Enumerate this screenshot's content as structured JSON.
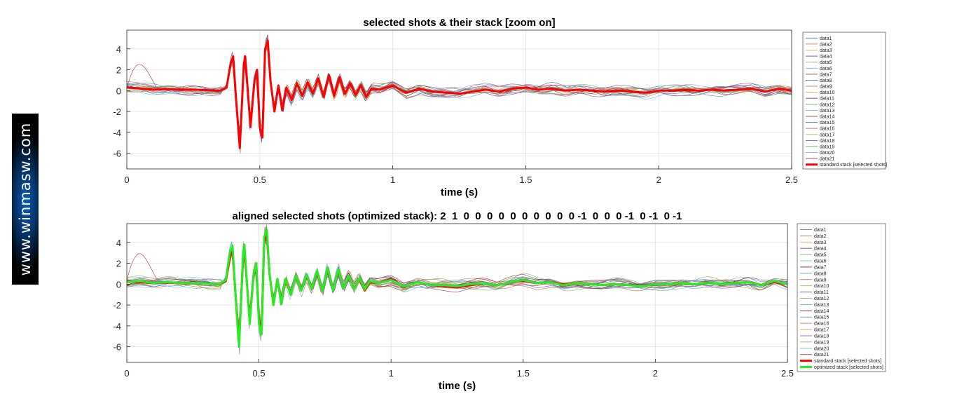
{
  "watermark": {
    "text": "www.winmasw.com"
  },
  "series_names": [
    "data1",
    "data2",
    "data3",
    "data4",
    "data5",
    "data6",
    "data7",
    "data8",
    "data9",
    "data10",
    "data11",
    "data12",
    "data13",
    "data14",
    "data15",
    "data16",
    "data17",
    "data18",
    "data19",
    "data20",
    "data21"
  ],
  "trace_colors": [
    "#4f7fb5",
    "#b85c3a",
    "#c9a23a",
    "#7e3c8a",
    "#6aa84f",
    "#5dade2",
    "#8b1f2a",
    "#4f7fb5",
    "#b85c3a",
    "#c9a23a",
    "#7e3c8a",
    "#6aa84f",
    "#5dade2",
    "#8b1f2a",
    "#4f7fb5",
    "#b85c3a",
    "#c9a23a",
    "#7e3c8a",
    "#6aa84f",
    "#5dade2",
    "#8b1f2a"
  ],
  "chart_data": [
    {
      "type": "line",
      "title": "selected shots & their stack [zoom on]",
      "xlabel": "time (s)",
      "ylabel": "",
      "xlim": [
        0,
        2.5
      ],
      "ylim": [
        -7.5,
        5.8
      ],
      "xticks": [
        0,
        0.5,
        1,
        1.5,
        2,
        2.5
      ],
      "xtick_labels": [
        "0",
        "0.5",
        "1",
        "1.5",
        "2",
        "2.5"
      ],
      "yticks": [
        4,
        2,
        0,
        -2,
        -4,
        -6
      ],
      "ytick_labels": [
        "4",
        "2",
        "0",
        "-2",
        "-4",
        "-6"
      ],
      "grid": true,
      "legend_position": "right",
      "trace_series": [
        "data1",
        "data2",
        "data3",
        "data4",
        "data5",
        "data6",
        "data7",
        "data8",
        "data9",
        "data10",
        "data11",
        "data12",
        "data13",
        "data14",
        "data15",
        "data16",
        "data17",
        "data18",
        "data19",
        "data20",
        "data21"
      ],
      "stack_series": [
        {
          "name": "standard stack [selected shots]",
          "color": "#ff0000",
          "x": [
            0,
            0.05,
            0.1,
            0.15,
            0.2,
            0.25,
            0.3,
            0.35,
            0.375,
            0.39,
            0.4,
            0.41,
            0.425,
            0.44,
            0.445,
            0.455,
            0.465,
            0.48,
            0.49,
            0.5,
            0.51,
            0.52,
            0.53,
            0.54,
            0.555,
            0.57,
            0.585,
            0.6,
            0.62,
            0.64,
            0.66,
            0.68,
            0.7,
            0.72,
            0.74,
            0.76,
            0.78,
            0.8,
            0.82,
            0.84,
            0.86,
            0.88,
            0.9,
            0.92,
            0.95,
            1,
            1.05,
            1.1,
            1.15,
            1.2,
            1.25,
            1.3,
            1.35,
            1.4,
            1.45,
            1.5,
            1.55,
            1.6,
            1.65,
            1.7,
            1.75,
            1.8,
            1.85,
            1.9,
            1.95,
            2,
            2.05,
            2.1,
            2.15,
            2.2,
            2.25,
            2.3,
            2.35,
            2.4,
            2.45,
            2.5
          ],
          "y": [
            0.3,
            0.2,
            0.1,
            0.15,
            0.1,
            0.1,
            0.05,
            0,
            0.3,
            2.5,
            3.3,
            -0.5,
            -5.5,
            2.5,
            3.3,
            0,
            -3.5,
            1,
            2,
            -3.5,
            -4.5,
            4,
            4.8,
            1,
            -2,
            0.5,
            -1.9,
            0.3,
            -0.9,
            0.7,
            -0.5,
            0.8,
            -0.3,
            1.2,
            -0.6,
            1.5,
            -0.5,
            1.3,
            -0.3,
            0.7,
            -0.4,
            0.5,
            -0.6,
            0.2,
            0.1,
            0.5,
            -0.2,
            0.2,
            -0.1,
            -0.2,
            -0.3,
            -0.1,
            0.1,
            -0.1,
            0.2,
            0.3,
            0.1,
            0.2,
            0,
            0.1,
            0,
            -0.1,
            0,
            -0.1,
            -0.2,
            0,
            0,
            0.1,
            0,
            0.1,
            0,
            0.1,
            0.2,
            -0.1,
            0.2,
            0
          ]
        }
      ]
    },
    {
      "type": "line",
      "title": "aligned selected shots (optimized stack): 2  1  0  0  0  0  0  0  0  0  0  0 -1  0  0  0 -1  0 -1  0 -1",
      "xlabel": "time (s)",
      "ylabel": "",
      "xlim": [
        0,
        2.5
      ],
      "ylim": [
        -7.5,
        5.8
      ],
      "xticks": [
        0,
        0.5,
        1,
        1.5,
        2,
        2.5
      ],
      "xtick_labels": [
        "0",
        "0.5",
        "1",
        "1.5",
        "2",
        "2.5"
      ],
      "yticks": [
        4,
        2,
        0,
        -2,
        -4,
        -6
      ],
      "ytick_labels": [
        "4",
        "2",
        "0",
        "-2",
        "-4",
        "-6"
      ],
      "grid": true,
      "legend_position": "right",
      "trace_series": [
        "data1",
        "data2",
        "data3",
        "data4",
        "data5",
        "data6",
        "data7",
        "data8",
        "data9",
        "data10",
        "data11",
        "data12",
        "data13",
        "data14",
        "data15",
        "data16",
        "data17",
        "data18",
        "data19",
        "data20",
        "data21"
      ],
      "stack_series": [
        {
          "name": "standard stack [selected shots]",
          "color": "#ff0000",
          "x": [
            0,
            0.05,
            0.1,
            0.15,
            0.2,
            0.25,
            0.3,
            0.35,
            0.375,
            0.39,
            0.4,
            0.41,
            0.425,
            0.44,
            0.445,
            0.455,
            0.465,
            0.48,
            0.49,
            0.5,
            0.51,
            0.52,
            0.53,
            0.54,
            0.555,
            0.57,
            0.585,
            0.6,
            0.62,
            0.64,
            0.66,
            0.68,
            0.7,
            0.72,
            0.74,
            0.76,
            0.78,
            0.8,
            0.82,
            0.84,
            0.86,
            0.88,
            0.9,
            0.92,
            0.95,
            1,
            1.05,
            1.1,
            1.15,
            1.2,
            1.25,
            1.3,
            1.35,
            1.4,
            1.45,
            1.5,
            1.55,
            1.6,
            1.65,
            1.7,
            1.75,
            1.8,
            1.85,
            1.9,
            1.95,
            2,
            2.05,
            2.1,
            2.15,
            2.2,
            2.25,
            2.3,
            2.35,
            2.4,
            2.45,
            2.5
          ],
          "y": [
            0.3,
            0.2,
            0.1,
            0.15,
            0.1,
            0.1,
            0.05,
            0,
            0.3,
            2.5,
            3.3,
            -0.5,
            -5.5,
            2.5,
            3.3,
            0,
            -3.5,
            1,
            2,
            -3.5,
            -4.5,
            4,
            4.8,
            1,
            -2,
            0.5,
            -1.9,
            0.3,
            -0.9,
            0.7,
            -0.5,
            0.8,
            -0.3,
            1.2,
            -0.6,
            1.5,
            -0.5,
            1.3,
            -0.3,
            0.7,
            -0.4,
            0.5,
            -0.6,
            0.2,
            0.1,
            0.5,
            -0.2,
            0.2,
            -0.1,
            -0.2,
            -0.3,
            -0.1,
            0.1,
            -0.1,
            0.2,
            0.3,
            0.1,
            0.2,
            0,
            0.1,
            0,
            -0.1,
            0,
            -0.1,
            -0.2,
            0,
            0,
            0.1,
            0,
            0.1,
            0,
            0.1,
            0.2,
            -0.1,
            0.2,
            0
          ]
        },
        {
          "name": "optimized stack [selected shots]",
          "color": "#22ee22",
          "x": [
            0,
            0.05,
            0.1,
            0.15,
            0.2,
            0.25,
            0.3,
            0.35,
            0.375,
            0.39,
            0.4,
            0.41,
            0.425,
            0.44,
            0.445,
            0.455,
            0.465,
            0.48,
            0.49,
            0.5,
            0.51,
            0.52,
            0.53,
            0.54,
            0.555,
            0.57,
            0.585,
            0.6,
            0.62,
            0.64,
            0.66,
            0.68,
            0.7,
            0.72,
            0.74,
            0.76,
            0.78,
            0.8,
            0.82,
            0.84,
            0.86,
            0.88,
            0.9,
            0.92,
            0.95,
            1,
            1.05,
            1.1,
            1.15,
            1.2,
            1.25,
            1.3,
            1.35,
            1.4,
            1.45,
            1.5,
            1.55,
            1.6,
            1.65,
            1.7,
            1.75,
            1.8,
            1.85,
            1.9,
            1.95,
            2,
            2.05,
            2.1,
            2.15,
            2.2,
            2.25,
            2.3,
            2.35,
            2.4,
            2.45,
            2.5
          ],
          "y": [
            0.2,
            0.3,
            0.1,
            0.2,
            0.1,
            0.1,
            0.05,
            0,
            0.4,
            3,
            3.7,
            -0.5,
            -6,
            3,
            3.8,
            0,
            -3.8,
            1,
            2,
            -3.8,
            -4.8,
            4.5,
            5.2,
            1,
            -2,
            0.5,
            -1.9,
            0.5,
            -1,
            0.8,
            -0.6,
            0.9,
            -0.4,
            1.3,
            -0.7,
            1.6,
            -0.6,
            1.4,
            -0.4,
            0.8,
            -0.5,
            0.6,
            -0.5,
            0.3,
            0.1,
            0.4,
            -0.2,
            0.2,
            -0.1,
            -0.1,
            -0.2,
            0,
            0.1,
            -0.1,
            0.2,
            0.4,
            0.1,
            0.2,
            -0.1,
            0.1,
            0,
            -0.1,
            0,
            -0.1,
            -0.2,
            0,
            0,
            0.1,
            0,
            0.1,
            0,
            0.1,
            0.2,
            -0.1,
            0.3,
            0
          ]
        }
      ]
    }
  ]
}
